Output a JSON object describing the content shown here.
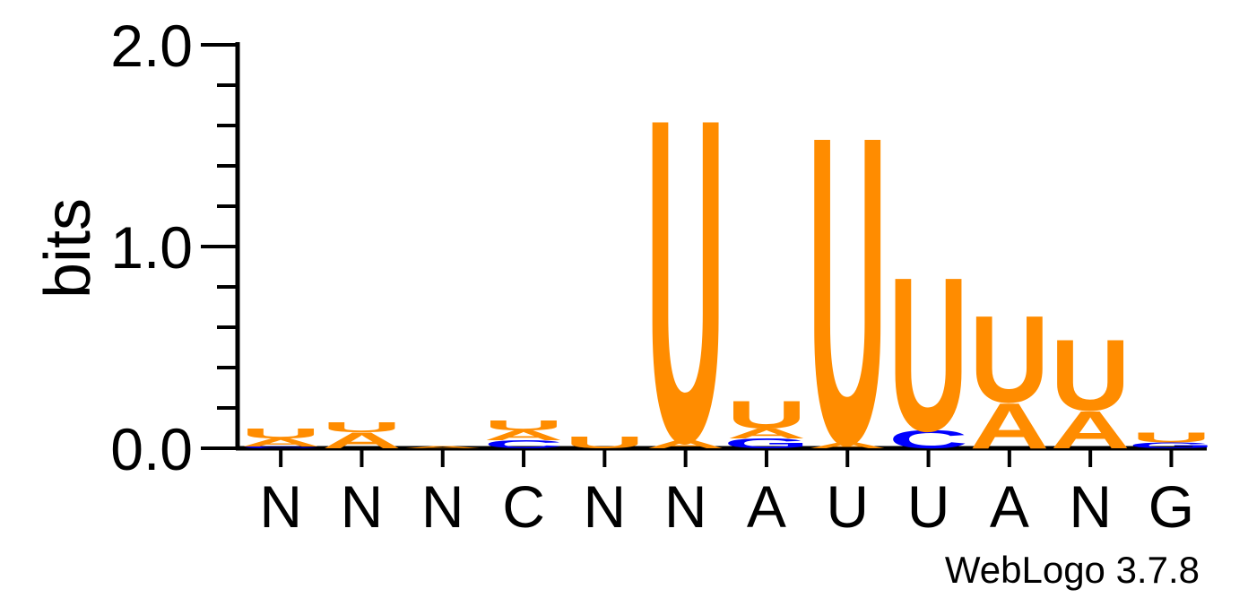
{
  "chart_data": {
    "type": "sequence-logo",
    "ylabel": "bits",
    "ylim": [
      0,
      2.0
    ],
    "yticks": [
      "0.0",
      "1.0",
      "2.0"
    ],
    "consensus": [
      "N",
      "N",
      "N",
      "C",
      "N",
      "N",
      "A",
      "U",
      "U",
      "A",
      "N",
      "G"
    ],
    "colors": {
      "A": "#ff8c00",
      "U": "#ff8c00",
      "C": "#0000ff",
      "G": "#0000ff"
    },
    "positions": [
      {
        "letters": [
          {
            "l": "C",
            "h": 0.01
          },
          {
            "l": "A",
            "h": 0.04
          },
          {
            "l": "U",
            "h": 0.05
          }
        ]
      },
      {
        "letters": [
          {
            "l": "A",
            "h": 0.08
          },
          {
            "l": "U",
            "h": 0.05
          }
        ]
      },
      {
        "letters": [
          {
            "l": "A",
            "h": 0.01
          }
        ]
      },
      {
        "letters": [
          {
            "l": "C",
            "h": 0.04
          },
          {
            "l": "A",
            "h": 0.05
          },
          {
            "l": "U",
            "h": 0.05
          }
        ]
      },
      {
        "letters": [
          {
            "l": "U",
            "h": 0.06
          }
        ]
      },
      {
        "letters": [
          {
            "l": "A",
            "h": 0.04
          },
          {
            "l": "U",
            "h": 1.64
          }
        ]
      },
      {
        "letters": [
          {
            "l": "G",
            "h": 0.05
          },
          {
            "l": "A",
            "h": 0.05
          },
          {
            "l": "U",
            "h": 0.14
          }
        ]
      },
      {
        "letters": [
          {
            "l": "A",
            "h": 0.03
          },
          {
            "l": "U",
            "h": 1.56
          }
        ]
      },
      {
        "letters": [
          {
            "l": "C",
            "h": 0.09
          },
          {
            "l": "U",
            "h": 0.78
          }
        ]
      },
      {
        "letters": [
          {
            "l": "A",
            "h": 0.23
          },
          {
            "l": "U",
            "h": 0.44
          }
        ]
      },
      {
        "letters": [
          {
            "l": "A",
            "h": 0.19
          },
          {
            "l": "U",
            "h": 0.36
          }
        ]
      },
      {
        "letters": [
          {
            "l": "G",
            "h": 0.03
          },
          {
            "l": "U",
            "h": 0.05
          }
        ]
      }
    ]
  },
  "footer": {
    "credit": "WebLogo 3.7.8"
  }
}
